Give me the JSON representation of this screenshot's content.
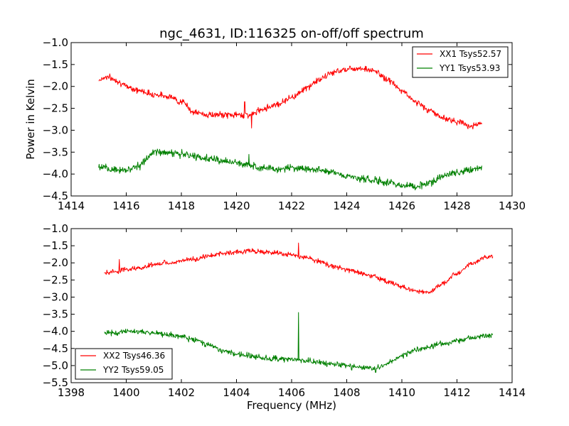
{
  "chart_data": [
    {
      "type": "line",
      "title": "ngc_4631, ID:116325 on-off/off spectrum",
      "xlabel": "",
      "ylabel": "Power in Kelvin",
      "xlim": [
        1414,
        1430
      ],
      "ylim": [
        -4.5,
        -1.0
      ],
      "xticks": [
        1414,
        1416,
        1418,
        1420,
        1422,
        1424,
        1426,
        1428,
        1430
      ],
      "yticks": [
        -4.5,
        -4.0,
        -3.5,
        -3.0,
        -2.5,
        -2.0,
        -1.5,
        -1.0
      ],
      "xtick_labels": [
        "1414",
        "1416",
        "1418",
        "1420",
        "1422",
        "1424",
        "1426",
        "1428",
        "1430"
      ],
      "ytick_labels": [
        "−4.5",
        "−4.0",
        "−3.5",
        "−3.0",
        "−2.5",
        "−2.0",
        "−1.5",
        "−1.0"
      ],
      "legend_position": "top-right",
      "grid": false,
      "series": [
        {
          "name": "XX1 Tsys52.57",
          "color": "#ff0000",
          "noise": 0.06,
          "x": [
            1415.0,
            1415.3,
            1415.6,
            1416.0,
            1416.5,
            1417.0,
            1417.5,
            1418.0,
            1418.5,
            1419.0,
            1419.5,
            1420.0,
            1420.5,
            1421.0,
            1421.5,
            1422.0,
            1422.5,
            1423.0,
            1423.5,
            1424.0,
            1424.5,
            1425.0,
            1425.5,
            1426.0,
            1426.5,
            1427.0,
            1427.5,
            1428.0,
            1428.5,
            1428.9
          ],
          "y": [
            -1.85,
            -1.78,
            -1.85,
            -2.0,
            -2.1,
            -2.18,
            -2.22,
            -2.35,
            -2.6,
            -2.65,
            -2.65,
            -2.65,
            -2.65,
            -2.5,
            -2.4,
            -2.25,
            -2.05,
            -1.85,
            -1.68,
            -1.6,
            -1.58,
            -1.65,
            -1.85,
            -2.1,
            -2.35,
            -2.55,
            -2.72,
            -2.8,
            -2.9,
            -2.85
          ],
          "spikes": [
            {
              "x": 1420.55,
              "y": -2.95
            },
            {
              "x": 1420.3,
              "y": -2.35
            }
          ]
        },
        {
          "name": "YY1 Tsys53.93",
          "color": "#008000",
          "noise": 0.07,
          "x": [
            1415.0,
            1415.5,
            1416.0,
            1416.5,
            1417.0,
            1417.5,
            1418.0,
            1418.5,
            1419.0,
            1419.5,
            1420.0,
            1420.5,
            1421.0,
            1421.5,
            1422.0,
            1422.5,
            1423.0,
            1423.5,
            1424.0,
            1424.5,
            1425.0,
            1425.5,
            1426.0,
            1426.5,
            1427.0,
            1427.5,
            1428.0,
            1428.5,
            1428.9
          ],
          "y": [
            -3.85,
            -3.9,
            -3.9,
            -3.8,
            -3.5,
            -3.5,
            -3.55,
            -3.6,
            -3.65,
            -3.7,
            -3.75,
            -3.8,
            -3.85,
            -3.9,
            -3.85,
            -3.88,
            -3.9,
            -3.95,
            -4.05,
            -4.1,
            -4.15,
            -4.2,
            -4.25,
            -4.28,
            -4.2,
            -4.05,
            -3.95,
            -3.9,
            -3.85
          ],
          "spikes": [
            {
              "x": 1420.45,
              "y": -3.55
            }
          ]
        }
      ]
    },
    {
      "type": "line",
      "title": "",
      "xlabel": "Frequency (MHz)",
      "ylabel": "",
      "xlim": [
        1398,
        1414
      ],
      "ylim": [
        -5.5,
        -1.0
      ],
      "xticks": [
        1398,
        1400,
        1402,
        1404,
        1406,
        1408,
        1410,
        1412,
        1414
      ],
      "yticks": [
        -5.5,
        -5.0,
        -4.5,
        -4.0,
        -3.5,
        -3.0,
        -2.5,
        -2.0,
        -1.5,
        -1.0
      ],
      "xtick_labels": [
        "1398",
        "1400",
        "1402",
        "1404",
        "1406",
        "1408",
        "1410",
        "1412",
        "1414"
      ],
      "ytick_labels": [
        "−5.5",
        "−5.0",
        "−4.5",
        "−4.0",
        "−3.5",
        "−3.0",
        "−2.5",
        "−2.0",
        "−1.5",
        "−1.0"
      ],
      "legend_position": "bottom-left",
      "grid": false,
      "series": [
        {
          "name": "XX2 Tsys46.36",
          "color": "#ff0000",
          "noise": 0.06,
          "x": [
            1399.2,
            1399.6,
            1400.0,
            1400.5,
            1401.0,
            1401.5,
            1402.0,
            1402.5,
            1403.0,
            1403.5,
            1404.0,
            1404.5,
            1405.0,
            1405.5,
            1406.0,
            1406.5,
            1407.0,
            1407.5,
            1408.0,
            1408.5,
            1409.0,
            1409.5,
            1410.0,
            1410.5,
            1411.0,
            1411.5,
            1412.0,
            1412.5,
            1413.0,
            1413.3
          ],
          "y": [
            -2.3,
            -2.25,
            -2.2,
            -2.15,
            -2.05,
            -2.0,
            -1.95,
            -1.88,
            -1.8,
            -1.72,
            -1.68,
            -1.65,
            -1.68,
            -1.72,
            -1.78,
            -1.85,
            -1.95,
            -2.1,
            -2.2,
            -2.3,
            -2.4,
            -2.55,
            -2.7,
            -2.82,
            -2.85,
            -2.6,
            -2.3,
            -2.05,
            -1.85,
            -1.8
          ],
          "spikes": [
            {
              "x": 1399.75,
              "y": -1.9
            },
            {
              "x": 1406.25,
              "y": -1.42
            }
          ]
        },
        {
          "name": "YY2 Tsys59.05",
          "color": "#008000",
          "noise": 0.07,
          "x": [
            1399.2,
            1399.6,
            1400.0,
            1400.5,
            1401.0,
            1401.5,
            1402.0,
            1402.5,
            1403.0,
            1403.5,
            1404.0,
            1404.5,
            1405.0,
            1405.5,
            1406.0,
            1406.5,
            1407.0,
            1407.5,
            1408.0,
            1408.5,
            1409.0,
            1409.5,
            1410.0,
            1410.5,
            1411.0,
            1411.5,
            1412.0,
            1412.5,
            1413.0,
            1413.3
          ],
          "y": [
            -4.05,
            -4.05,
            -4.0,
            -4.02,
            -4.05,
            -4.1,
            -4.15,
            -4.25,
            -4.4,
            -4.55,
            -4.65,
            -4.72,
            -4.78,
            -4.8,
            -4.82,
            -4.85,
            -4.9,
            -4.95,
            -5.0,
            -5.05,
            -5.08,
            -4.92,
            -4.72,
            -4.55,
            -4.45,
            -4.35,
            -4.28,
            -4.2,
            -4.15,
            -4.1
          ],
          "spikes": [
            {
              "x": 1406.25,
              "y": -3.45
            },
            {
              "x": 1409.05,
              "y": -5.2
            }
          ]
        }
      ]
    }
  ]
}
